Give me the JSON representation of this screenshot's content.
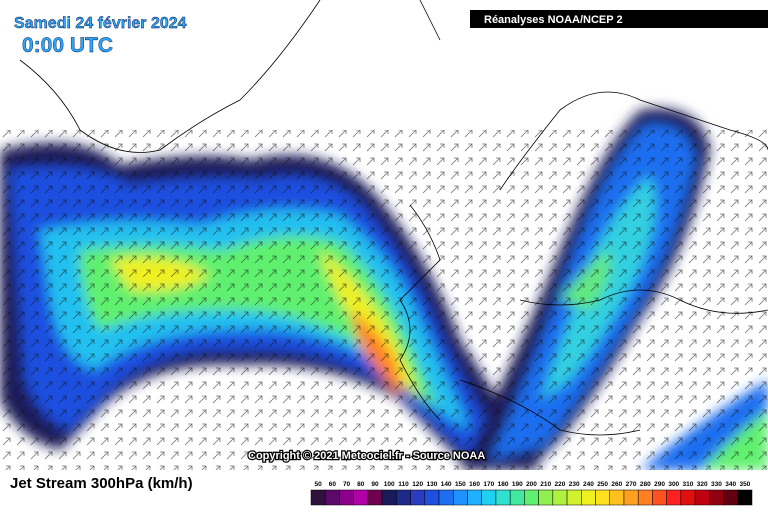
{
  "header": {
    "title": "Samedi 24 février 2024",
    "time": "0:00 UTC",
    "source": "Réanalyses NOAA/NCEP 2"
  },
  "copyright": "Copyright © 2021 Meteociel.fr - Source NOAA",
  "legend": {
    "title": "Jet Stream 300hPa (km/h)",
    "values": [
      50,
      60,
      70,
      80,
      90,
      100,
      110,
      120,
      130,
      140,
      150,
      160,
      170,
      180,
      190,
      200,
      210,
      220,
      230,
      240,
      250,
      260,
      270,
      280,
      290,
      300,
      310,
      320,
      330,
      340,
      350
    ],
    "colors": [
      "#30103c",
      "#5c0a6a",
      "#8a008a",
      "#b000a8",
      "#700050",
      "#1a1a5a",
      "#1e2a8a",
      "#2a3cc0",
      "#1e50e0",
      "#1e6ef0",
      "#1e90ff",
      "#20b0ff",
      "#20d0f0",
      "#30e0d0",
      "#40e8a0",
      "#60f070",
      "#90f050",
      "#b0f040",
      "#d0f030",
      "#f0f020",
      "#ffe020",
      "#ffc020",
      "#ffa020",
      "#ff8020",
      "#ff5020",
      "#ff2020",
      "#e01010",
      "#c00010",
      "#900010",
      "#600010",
      "#000000"
    ]
  }
}
